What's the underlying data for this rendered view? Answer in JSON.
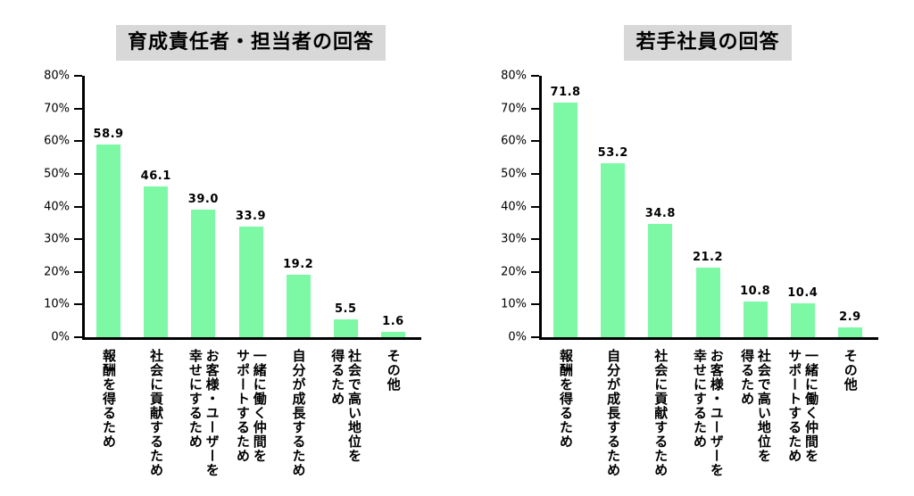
{
  "style": {
    "bar_color": "#7DF9A6",
    "title_bg": "#D8D8D8",
    "axis_color": "#000000",
    "text_color": "#000000",
    "background": "#FFFFFF"
  },
  "chart_data": [
    {
      "type": "bar",
      "title": "育成責任者・担当者の回答",
      "categories": [
        "報酬を得るため",
        "社会に貢献するため",
        "お客様・ユーザーを\n幸せにするため",
        "一緒に働く仲間を\nサポートするため",
        "自分が成長するため",
        "社会で高い地位を\n得るため",
        "その他"
      ],
      "values": [
        58.9,
        46.1,
        39.0,
        33.9,
        19.2,
        5.5,
        1.6
      ],
      "value_labels": [
        "58.9",
        "46.1",
        "39.0",
        "33.9",
        "19.2",
        "5.5",
        "1.6"
      ],
      "xlabel": "",
      "ylabel": "",
      "ylim": [
        0,
        80
      ],
      "ytick_step": 10,
      "ytick_labels": [
        "0%",
        "10%",
        "20%",
        "30%",
        "40%",
        "50%",
        "60%",
        "70%",
        "80%"
      ],
      "grid": false,
      "legend": "none"
    },
    {
      "type": "bar",
      "title": "若手社員の回答",
      "categories": [
        "報酬を得るため",
        "自分が成長するため",
        "社会に貢献するため",
        "お客様・ユーザーを\n幸せにするため",
        "社会で高い地位を\n得るため",
        "一緒に働く仲間を\nサポートするため",
        "その他"
      ],
      "values": [
        71.8,
        53.2,
        34.8,
        21.2,
        10.8,
        10.4,
        2.9
      ],
      "value_labels": [
        "71.8",
        "53.2",
        "34.8",
        "21.2",
        "10.8",
        "10.4",
        "2.9"
      ],
      "xlabel": "",
      "ylabel": "",
      "ylim": [
        0,
        80
      ],
      "ytick_step": 10,
      "ytick_labels": [
        "0%",
        "10%",
        "20%",
        "30%",
        "40%",
        "50%",
        "60%",
        "70%",
        "80%"
      ],
      "grid": false,
      "legend": "none"
    }
  ]
}
